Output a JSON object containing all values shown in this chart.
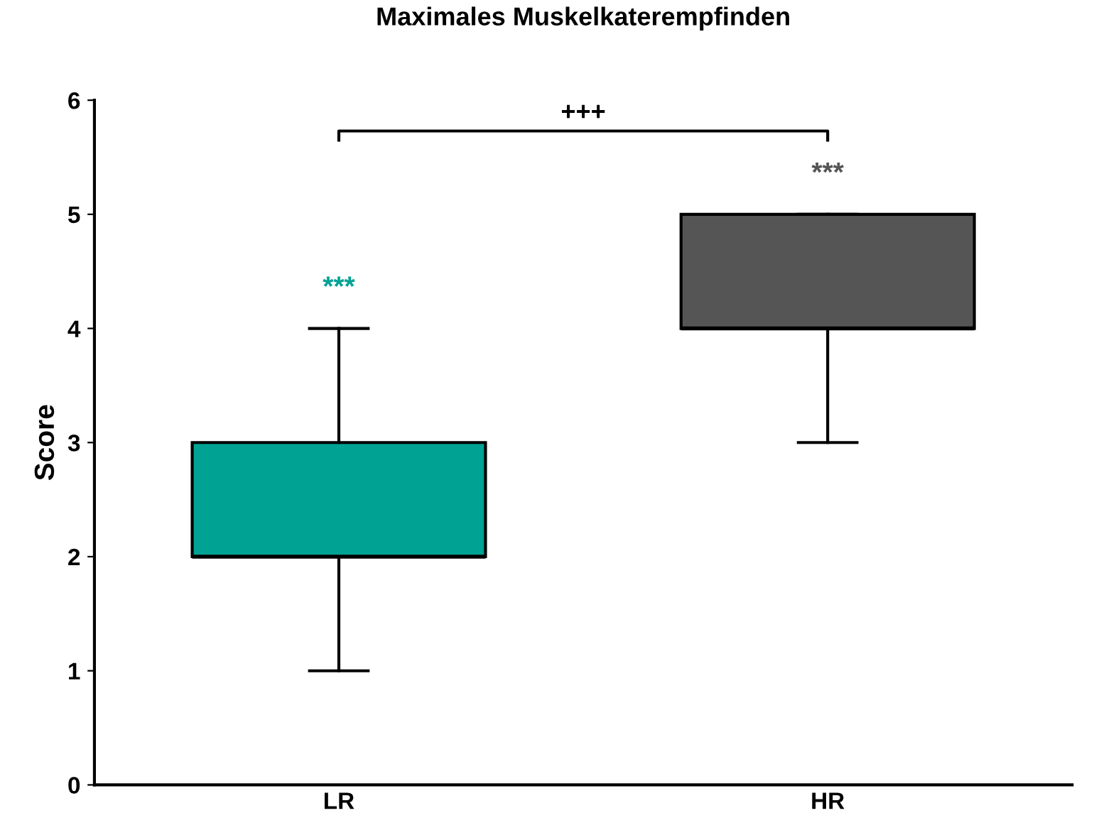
{
  "chart_data": {
    "type": "box",
    "title": "Maximales Muskelkaterempfinden",
    "ylabel": "Score",
    "categories": [
      "LR",
      "HR"
    ],
    "colors": [
      "#00a294",
      "#555555"
    ],
    "boxes": [
      {
        "low": 1,
        "q1": 2,
        "median": 2,
        "q3": 3,
        "high": 4
      },
      {
        "low": 3,
        "q1": 4,
        "median": 4,
        "q3": 5,
        "high": 5
      }
    ],
    "ylim": [
      0,
      6
    ],
    "yticks": [
      0,
      1,
      2,
      3,
      4,
      5,
      6
    ],
    "grid": false,
    "annotations": [
      "***",
      "***",
      "+++"
    ]
  }
}
